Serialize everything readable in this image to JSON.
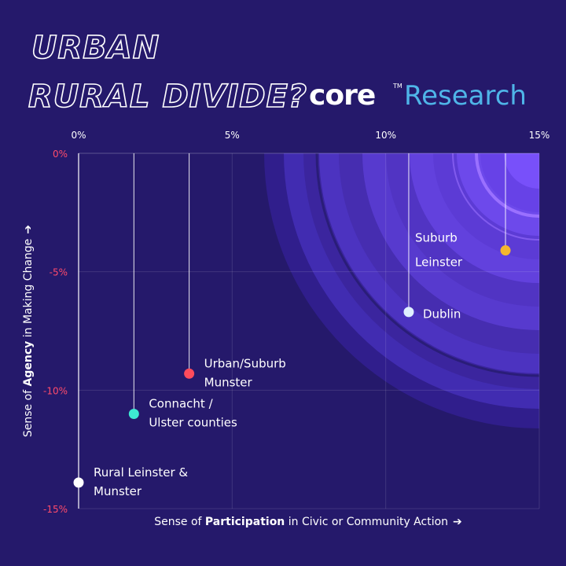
{
  "title": {
    "line1": "URBAN",
    "line2": "RURAL DIVIDE?"
  },
  "logo": {
    "brand": "core",
    "trademark": "TM",
    "product": "Research"
  },
  "colors": {
    "background": "#25196b",
    "accent_blue": "#4fb5e8",
    "tick_red": "#ff4b6b",
    "ring_light": "#6b4cf0",
    "ring_dark": "#2a1d78",
    "ring_highlight": "#9a70ff",
    "label_gold": "#f5b72e"
  },
  "chart_data": {
    "type": "scatter",
    "title": "URBAN RURAL DIVIDE?",
    "xlabel": {
      "prefix": "Sense of ",
      "bold": "Participation",
      "suffix": " in Civic or Community Action",
      "arrow": "➔"
    },
    "ylabel": {
      "prefix": "Sense of ",
      "bold": "Agency",
      "suffix": " in Making Change",
      "arrow": "➔"
    },
    "xlim": [
      0,
      15
    ],
    "ylim": [
      -15,
      0
    ],
    "x_ticks": [
      {
        "value": 0,
        "label": "0%"
      },
      {
        "value": 5,
        "label": "5%"
      },
      {
        "value": 10,
        "label": "10%"
      },
      {
        "value": 15,
        "label": "15%"
      }
    ],
    "y_ticks": [
      {
        "value": 0,
        "label": "0%"
      },
      {
        "value": -5,
        "label": "-5%"
      },
      {
        "value": -10,
        "label": "-10%"
      },
      {
        "value": -15,
        "label": "-15%"
      }
    ],
    "grid": true,
    "points": [
      {
        "name": "Rural Leinster & Munster",
        "lines": [
          "Rural Leinster &",
          "Munster"
        ],
        "x": 0,
        "y": -13.9,
        "color": "#ffffff",
        "label_color": "#ffffff",
        "label_size": "normal"
      },
      {
        "name": "Connacht / Ulster counties",
        "lines": [
          "Connacht /",
          "Ulster counties"
        ],
        "x": 1.8,
        "y": -11.0,
        "color": "#3ee8d2",
        "label_color": "#ffffff",
        "label_size": "normal"
      },
      {
        "name": "Urban/Suburb Munster",
        "lines": [
          "Urban/Suburb",
          "Munster"
        ],
        "x": 3.6,
        "y": -9.3,
        "color": "#ff4b5c",
        "label_color": "#ffffff",
        "label_size": "normal"
      },
      {
        "name": "Dublin",
        "lines": [
          "Dublin"
        ],
        "x": 10.75,
        "y": -6.7,
        "color": "#dff0ff",
        "label_color": "#ffffff",
        "label_size": "large"
      },
      {
        "name": "Suburb Leinster",
        "lines": [
          "Suburb",
          "Leinster"
        ],
        "x": 13.9,
        "y": -4.1,
        "color": "#f5b72e",
        "label_color": "#f5b72e",
        "label_size": "large"
      }
    ]
  }
}
